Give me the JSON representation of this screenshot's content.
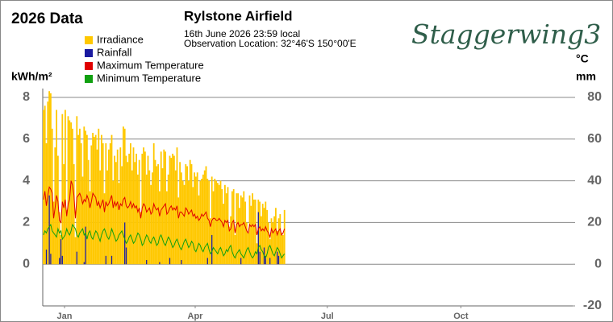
{
  "chart_data": {
    "type": "bar-line",
    "title": "Rylstone Airfield",
    "subtitle": [
      "16th June 2026  23:59 local",
      "Observation Location: 32°46'S 150°00'E"
    ],
    "heading": "2026 Data",
    "logo": "Staggerwing3",
    "y_label": "kWh/m²",
    "y2_labels": [
      "°C",
      "mm"
    ],
    "xlim": [
      0,
      365
    ],
    "xticks": [
      {
        "value": 15,
        "label": "Jan"
      },
      {
        "value": 105,
        "label": "Apr"
      },
      {
        "value": 196,
        "label": "Jul"
      },
      {
        "value": 288,
        "label": "Oct"
      }
    ],
    "ylim": [
      -2,
      8
    ],
    "yticks": [
      0,
      2,
      4,
      6,
      8
    ],
    "y2lim": [
      -20,
      80
    ],
    "y2ticks": [
      -20,
      0,
      20,
      40,
      60,
      80
    ],
    "grid": true,
    "series": [
      {
        "name": "Irradiance",
        "kind": "bar",
        "color": "#ffc800",
        "values": [
          7.4,
          7.6,
          5.8,
          7.8,
          8.3,
          8.2,
          6.5,
          3.0,
          5.6,
          7.4,
          5.2,
          2.5,
          1.4,
          7.2,
          4.8,
          7.4,
          2.6,
          7.1,
          6.9,
          6.8,
          6.5,
          4.8,
          1.3,
          7.1,
          6.2,
          6.5,
          5.8,
          4.2,
          6.6,
          6.4,
          6.2,
          5.0,
          3.5,
          5.7,
          6.3,
          6.1,
          6.2,
          5.5,
          6.5,
          4.5,
          6.2,
          5.8,
          3.4,
          5.8,
          4.5,
          5.5,
          5.8,
          6.2,
          4.0,
          5.2,
          4.9,
          5.5,
          3.9,
          5.6,
          4.7,
          6.6,
          6.5,
          5.2,
          4.9,
          5.3,
          5.8,
          4.5,
          5.6,
          4.9,
          5.3,
          4.3,
          5.0,
          2.5,
          5.3,
          5.6,
          5.4,
          4.3,
          5.2,
          4.5,
          3.8,
          4.4,
          5.8,
          5.0,
          4.7,
          4.8,
          3.5,
          5.4,
          4.6,
          5.5,
          5.4,
          3.5,
          4.3,
          5.2,
          5.1,
          5.3,
          5.2,
          4.5,
          5.6,
          3.2,
          4.9,
          4.4,
          4.0,
          3.8,
          4.8,
          4.7,
          4.0,
          5.0,
          4.8,
          3.7,
          4.4,
          4.2,
          4.4,
          3.3,
          4.0,
          4.1,
          4.3,
          4.5,
          4.7,
          4.1,
          4.0,
          2.2,
          4.2,
          3.5,
          4.1,
          4.0,
          3.9,
          3.8,
          4.0,
          3.6,
          2.9,
          3.8,
          3.4,
          3.7,
          1.8,
          2.3,
          3.5,
          3.6,
          1.4,
          3.4,
          3.4,
          2.7,
          3.3,
          3.2,
          3.5,
          3.0,
          2.0,
          1.5,
          3.3,
          2.8,
          3.4,
          3.1,
          3.1,
          1.0,
          3.1,
          3.0,
          2.3,
          2.9,
          2.7,
          3.0,
          2.6,
          2.0,
          1.2,
          2.2,
          2.0,
          2.3,
          2.7,
          1.6,
          2.2,
          2.4,
          1.5,
          1.4,
          2.6
        ]
      },
      {
        "name": "Rainfall",
        "kind": "bar",
        "axis": "y2",
        "color": "#1a1aa0",
        "values": [
          0,
          0,
          7,
          0,
          33,
          5,
          0,
          0,
          0,
          0,
          0,
          3,
          12,
          4,
          0,
          0,
          0,
          0,
          0,
          0,
          0,
          0,
          0,
          6,
          0,
          0,
          0,
          0,
          1,
          18,
          0,
          0,
          0,
          0,
          0,
          0,
          0,
          0,
          0,
          0,
          0,
          0,
          0,
          4,
          0,
          0,
          0,
          4,
          0,
          0,
          0,
          0,
          0,
          0,
          0,
          0,
          20,
          8,
          0,
          0,
          0,
          0,
          0,
          0,
          0,
          0,
          0,
          0,
          0,
          0,
          0,
          2,
          0,
          0,
          0,
          0,
          0,
          0,
          0,
          0,
          1,
          0,
          0,
          0,
          0,
          0,
          0,
          3,
          0,
          0,
          0,
          0,
          0,
          0,
          0,
          2,
          0,
          0,
          0,
          0,
          0,
          0,
          0,
          0,
          0,
          0,
          0,
          0,
          0,
          0,
          0,
          0,
          0,
          3,
          0,
          0,
          14,
          0,
          0,
          0,
          0,
          0,
          0,
          0,
          0,
          0,
          0,
          0,
          0,
          0,
          0,
          0,
          0,
          0,
          0,
          0,
          3,
          0,
          0,
          0,
          0,
          0,
          0,
          0,
          0,
          0,
          0,
          0,
          25,
          6,
          0,
          0,
          8,
          4,
          0,
          0,
          3,
          0,
          0,
          0,
          0,
          6,
          4,
          0,
          0,
          0,
          0
        ]
      },
      {
        "name": "Maximum Temperature",
        "kind": "line",
        "axis": "y2",
        "color": "#e00000",
        "values": [
          31,
          35,
          28,
          33,
          37,
          36,
          34,
          22,
          27,
          33,
          30,
          21,
          20,
          30,
          27,
          31,
          23,
          29,
          31,
          40,
          38,
          33,
          22,
          32,
          33,
          34,
          32,
          29,
          31,
          30,
          33,
          31,
          27,
          30,
          34,
          33,
          32,
          28,
          30,
          27,
          29,
          31,
          25,
          30,
          28,
          29,
          31,
          33,
          27,
          30,
          28,
          30,
          26,
          29,
          28,
          31,
          32,
          28,
          27,
          28,
          30,
          27,
          29,
          27,
          28,
          25,
          27,
          22,
          27,
          29,
          28,
          25,
          26,
          27,
          24,
          25,
          29,
          27,
          26,
          27,
          23,
          26,
          27,
          28,
          29,
          24,
          25,
          27,
          28,
          26,
          27,
          26,
          28,
          22,
          25,
          25,
          24,
          23,
          27,
          26,
          24,
          25,
          26,
          23,
          24,
          22,
          23,
          21,
          22,
          24,
          23,
          24,
          25,
          22,
          21,
          18,
          21,
          22,
          22,
          21,
          21,
          22,
          21,
          20,
          18,
          21,
          20,
          21,
          16,
          17,
          20,
          21,
          15,
          19,
          20,
          18,
          19,
          19,
          20,
          18,
          16,
          15,
          19,
          18,
          19,
          18,
          19,
          14,
          17,
          18,
          16,
          17,
          16,
          18,
          16,
          15,
          13,
          17,
          15,
          16,
          17,
          14,
          16,
          17,
          14,
          15,
          17
        ]
      },
      {
        "name": "Minimum Temperature",
        "kind": "line",
        "axis": "y2",
        "color": "#10a010",
        "values": [
          14,
          16,
          15,
          17,
          18,
          19,
          16,
          15,
          14,
          13,
          17,
          15,
          16,
          12,
          13,
          14,
          17,
          15,
          14,
          16,
          19,
          18,
          17,
          14,
          13,
          15,
          16,
          17,
          14,
          15,
          12,
          15,
          16,
          13,
          12,
          14,
          16,
          15,
          13,
          11,
          14,
          16,
          17,
          15,
          13,
          12,
          14,
          17,
          15,
          13,
          11,
          12,
          14,
          15,
          16,
          14,
          12,
          10,
          11,
          13,
          14,
          12,
          10,
          11,
          13,
          15,
          14,
          12,
          9,
          10,
          12,
          14,
          13,
          11,
          10,
          12,
          13,
          11,
          9,
          10,
          13,
          14,
          12,
          10,
          9,
          11,
          13,
          12,
          10,
          8,
          9,
          11,
          12,
          10,
          8,
          7,
          9,
          11,
          12,
          10,
          8,
          9,
          11,
          10,
          7,
          6,
          8,
          10,
          9,
          7,
          6,
          8,
          9,
          10,
          7,
          5,
          6,
          8,
          7,
          6,
          5,
          7,
          8,
          6,
          4,
          5,
          7,
          6,
          8,
          9,
          6,
          4,
          3,
          5,
          6,
          7,
          5,
          4,
          3,
          5,
          7,
          8,
          6,
          4,
          3,
          4,
          6,
          5,
          8,
          9,
          7,
          6,
          4,
          3,
          5,
          8,
          9,
          7,
          5,
          4,
          6,
          8,
          7,
          5,
          3,
          4,
          5
        ]
      }
    ]
  }
}
